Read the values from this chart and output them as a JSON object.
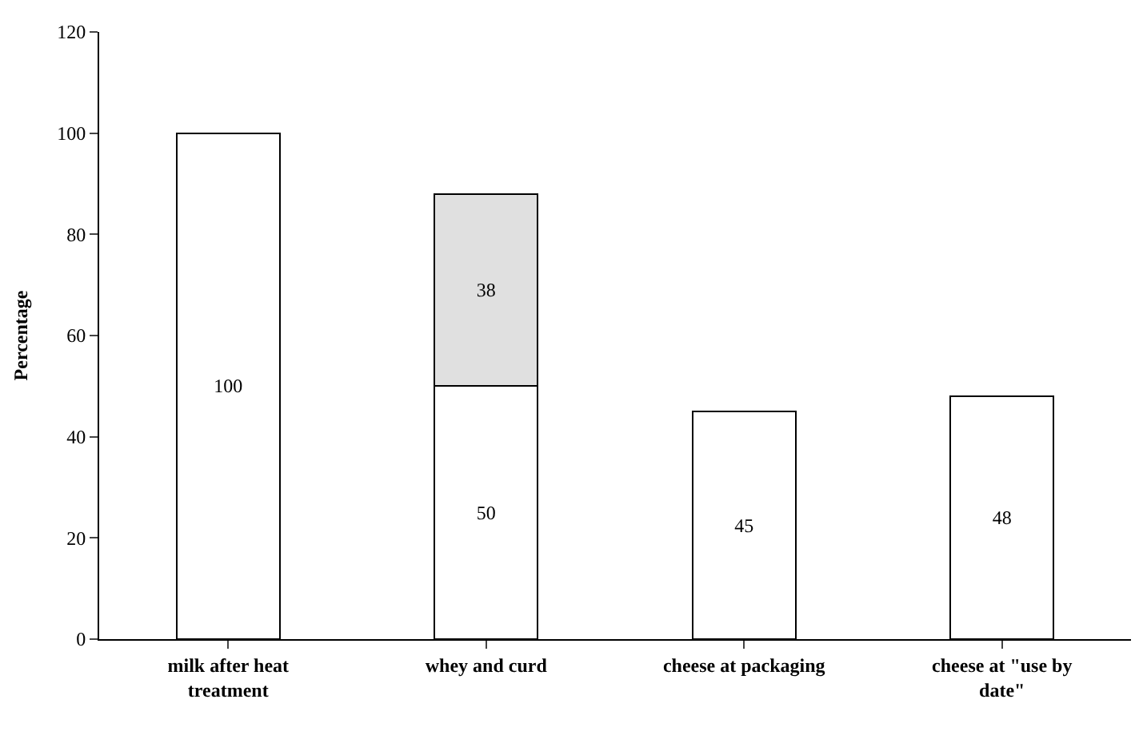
{
  "chart_data": {
    "type": "bar",
    "stacked": true,
    "ylabel": "Percentage",
    "categories": [
      "milk after heat treatment",
      "whey and curd",
      "cheese at packaging",
      "cheese at \"use by date\""
    ],
    "series": [
      {
        "color": "#ffffff",
        "values": [
          100,
          50,
          45,
          48
        ]
      },
      {
        "color": "#e0e0e0",
        "values": [
          null,
          38,
          null,
          null
        ]
      }
    ],
    "ylim": [
      0,
      120
    ],
    "yticks": [
      0,
      20,
      40,
      60,
      80,
      100,
      120
    ],
    "data_labels": true
  }
}
